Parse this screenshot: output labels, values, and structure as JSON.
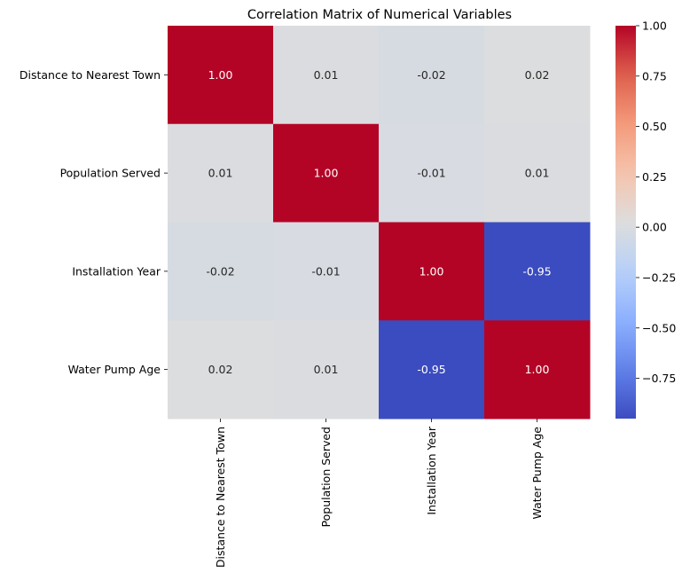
{
  "chart_data": {
    "type": "heatmap",
    "title": "Correlation Matrix of Numerical Variables",
    "row_labels": [
      "Distance to Nearest Town",
      "Population Served",
      "Installation Year",
      "Water Pump Age"
    ],
    "col_labels": [
      "Distance to Nearest Town",
      "Population Served",
      "Installation Year",
      "Water Pump Age"
    ],
    "values": [
      [
        1.0,
        0.01,
        -0.02,
        0.02
      ],
      [
        0.01,
        1.0,
        -0.01,
        0.01
      ],
      [
        -0.02,
        -0.01,
        1.0,
        -0.95
      ],
      [
        0.02,
        0.01,
        -0.95,
        1.0
      ]
    ],
    "cell_text": [
      [
        "1.00",
        "0.01",
        "-0.02",
        "0.02"
      ],
      [
        "0.01",
        "1.00",
        "-0.01",
        "0.01"
      ],
      [
        "-0.02",
        "-0.01",
        "1.00",
        "-0.95"
      ],
      [
        "0.02",
        "0.01",
        "-0.95",
        "1.00"
      ]
    ],
    "colormap": "coolwarm",
    "colorbar": {
      "range": [
        -0.95,
        1.0
      ],
      "ticks": [
        1.0,
        0.75,
        0.5,
        0.25,
        0.0,
        -0.25,
        -0.5,
        -0.75
      ],
      "tick_labels": [
        "1.00",
        "0.75",
        "0.50",
        "0.25",
        "0.00",
        "−0.25",
        "−0.50",
        "−0.75"
      ]
    },
    "grid": false
  }
}
